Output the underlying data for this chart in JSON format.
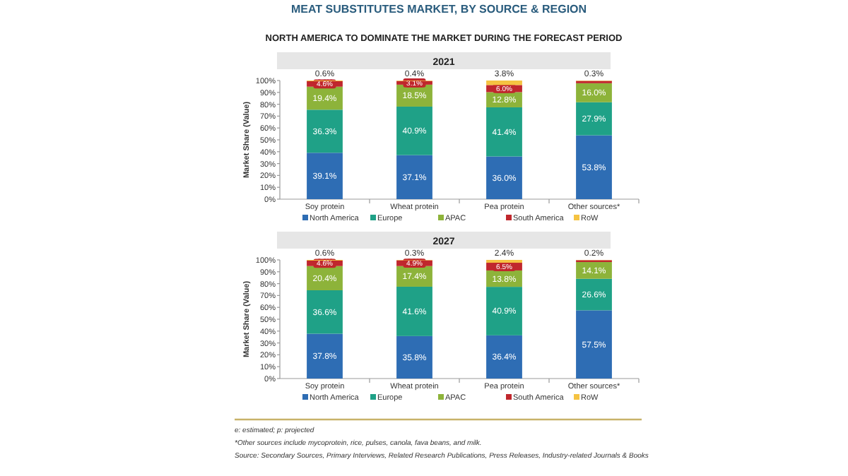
{
  "chart_data": [
    {
      "type": "bar",
      "stacked": true,
      "title": "2021",
      "ylabel": "Market Share (Value)",
      "legend": "bottom",
      "annotations": [
        "MEAT SUBSTITUTES MARKET, BY SOURCE & REGION",
        "NORTH AMERICA TO DOMINATE THE MARKET DURING THE FORECAST PERIOD"
      ],
      "categories": [
        "Soy protein",
        "Wheat protein",
        "Pea protein",
        "Other sources*"
      ],
      "ylim": [
        0,
        100
      ],
      "yticks": [
        {
          "value": 0,
          "label": "0%"
        },
        {
          "value": 10,
          "label": "10%"
        },
        {
          "value": 20,
          "label": "20%"
        },
        {
          "value": 30,
          "label": "30%"
        },
        {
          "value": 40,
          "label": "40%"
        },
        {
          "value": 50,
          "label": "50%"
        },
        {
          "value": 60,
          "label": "60%"
        },
        {
          "value": 70,
          "label": "70%"
        },
        {
          "value": 80,
          "label": "80%"
        },
        {
          "value": 90,
          "label": "90%"
        },
        {
          "value": 100,
          "label": "100%"
        }
      ],
      "series": [
        {
          "name": "North America",
          "color": "#2e6db4",
          "values": [
            39.1,
            37.1,
            36.0,
            53.8
          ],
          "value_labels": [
            "39.1%",
            "37.1%",
            "36.0%",
            "53.8%"
          ]
        },
        {
          "name": "Europe",
          "color": "#1fa187",
          "values": [
            36.3,
            40.9,
            41.4,
            27.9
          ],
          "value_labels": [
            "36.3%",
            "40.9%",
            "41.4%",
            "27.9%"
          ]
        },
        {
          "name": "APAC",
          "color": "#8db33a",
          "values": [
            19.4,
            18.5,
            12.8,
            16.0
          ],
          "value_labels": [
            "19.4%",
            "18.5%",
            "12.8%",
            "16.0%"
          ]
        },
        {
          "name": "South America",
          "color": "#c0272d",
          "values": [
            4.6,
            3.1,
            6.0,
            2.0
          ],
          "value_labels": [
            "4.6%",
            "3.1%",
            "6.0%",
            null
          ]
        },
        {
          "name": "RoW",
          "color": "#f5c342",
          "values": [
            0.6,
            0.4,
            3.8,
            0.3
          ],
          "value_labels": [
            "0.6%",
            "0.4%",
            "3.8%",
            "0.3%"
          ]
        }
      ]
    },
    {
      "type": "bar",
      "stacked": true,
      "title": "2027",
      "ylabel": "Market Share (Value)",
      "legend": "bottom",
      "annotations": [
        "e: estimated; p: projected",
        "*Other sources include mycoprotein, rice, pulses, canola, fava beans, and milk.",
        "Source: Secondary Sources, Primary Interviews, Related Research Publications, Press Releases, Industry-related Journals & Books"
      ],
      "categories": [
        "Soy protein",
        "Wheat protein",
        "Pea protein",
        "Other sources*"
      ],
      "ylim": [
        0,
        100
      ],
      "yticks": [
        {
          "value": 0,
          "label": "0%"
        },
        {
          "value": 10,
          "label": "10%"
        },
        {
          "value": 20,
          "label": "20%"
        },
        {
          "value": 30,
          "label": "30%"
        },
        {
          "value": 40,
          "label": "40%"
        },
        {
          "value": 50,
          "label": "50%"
        },
        {
          "value": 60,
          "label": "60%"
        },
        {
          "value": 70,
          "label": "70%"
        },
        {
          "value": 80,
          "label": "80%"
        },
        {
          "value": 90,
          "label": "90%"
        },
        {
          "value": 100,
          "label": "100%"
        }
      ],
      "series": [
        {
          "name": "North America",
          "color": "#2e6db4",
          "values": [
            37.8,
            35.8,
            36.4,
            57.5
          ],
          "value_labels": [
            "37.8%",
            "35.8%",
            "36.4%",
            "57.5%"
          ]
        },
        {
          "name": "Europe",
          "color": "#1fa187",
          "values": [
            36.6,
            41.6,
            40.9,
            26.6
          ],
          "value_labels": [
            "36.6%",
            "41.6%",
            "40.9%",
            "26.6%"
          ]
        },
        {
          "name": "APAC",
          "color": "#8db33a",
          "values": [
            20.4,
            17.4,
            13.8,
            14.1
          ],
          "value_labels": [
            "20.4%",
            "17.4%",
            "13.8%",
            "14.1%"
          ]
        },
        {
          "name": "South America",
          "color": "#c0272d",
          "values": [
            4.6,
            4.9,
            6.5,
            1.6
          ],
          "value_labels": [
            "4.6%",
            "4.9%",
            "6.5%",
            null
          ]
        },
        {
          "name": "RoW",
          "color": "#f5c342",
          "values": [
            0.6,
            0.3,
            2.4,
            0.2
          ],
          "value_labels": [
            "0.6%",
            "0.3%",
            "2.4%",
            "0.2%"
          ]
        }
      ]
    }
  ]
}
